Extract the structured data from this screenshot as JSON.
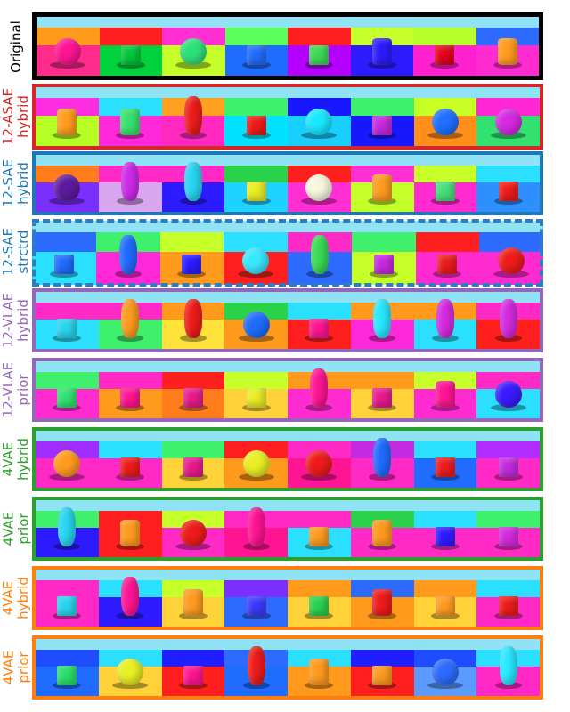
{
  "rows": [
    {
      "key": "original",
      "label": [
        "Original"
      ],
      "color": "#000000"
    },
    {
      "key": "asae12_hybrid",
      "label": [
        "12-ASAE",
        "hybrid"
      ],
      "color": "#d62728"
    },
    {
      "key": "sae12_hybrid",
      "label": [
        "12-SAE",
        "hybrid"
      ],
      "color": "#1f77b4"
    },
    {
      "key": "sae12_strctrd",
      "label": [
        "12-SAE",
        "strctrd"
      ],
      "color": "#1f77b4"
    },
    {
      "key": "vlae12_hybrid",
      "label": [
        "12-VLAE",
        "hybrid"
      ],
      "color": "#9467bd"
    },
    {
      "key": "vlae12_prior",
      "label": [
        "12-VLAE",
        "prior"
      ],
      "color": "#9467bd"
    },
    {
      "key": "vae4_hybrid",
      "label": [
        "4VAE",
        "hybrid"
      ],
      "color": "#2ca02c"
    },
    {
      "key": "vae4_prior",
      "label": [
        "4VAE",
        "prior"
      ],
      "color": "#2ca02c"
    },
    {
      "key": "vae4_hybrid_b",
      "label": [
        "4VAE",
        "hybrid"
      ],
      "color": "#ff7f0e"
    },
    {
      "key": "vae4_prior_b",
      "label": [
        "4VAE",
        "prior"
      ],
      "color": "#ff7f0e"
    }
  ],
  "colors": {
    "sky": "#8fe3f5",
    "dashed_border": "#2b7fc1"
  }
}
